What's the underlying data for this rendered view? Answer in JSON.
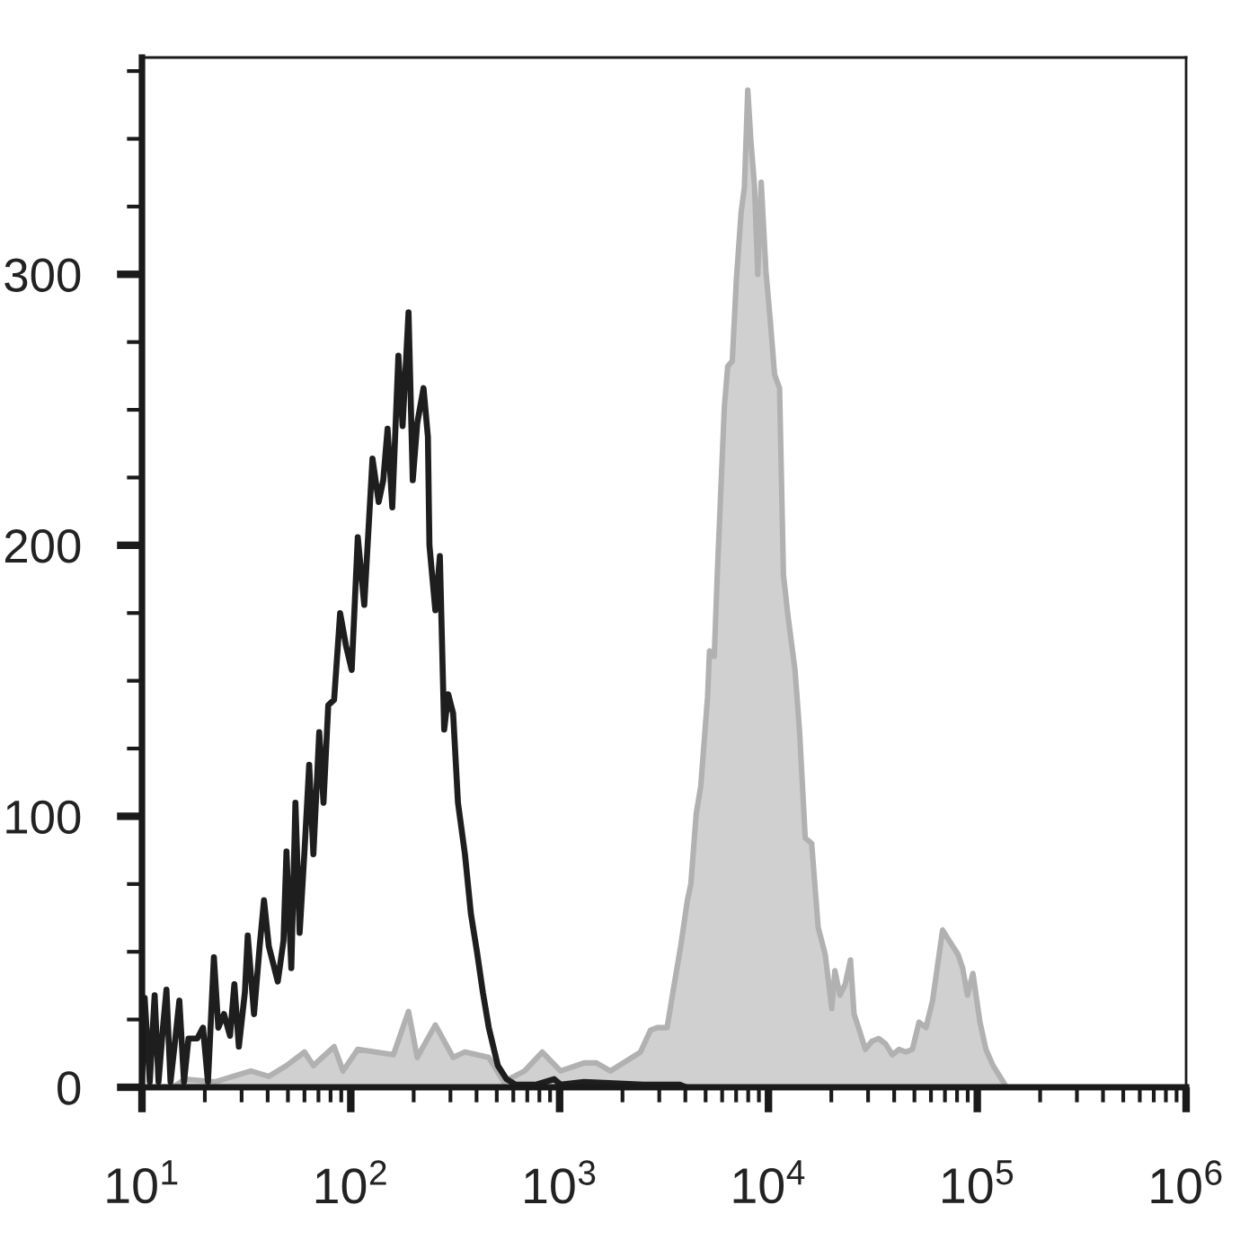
{
  "chart_data": {
    "type": "area",
    "log": "x",
    "xlim": [
      10,
      1000000
    ],
    "ylim": [
      0,
      380
    ],
    "xticks": [
      {
        "value": 10,
        "label": "10$^{1}$"
      },
      {
        "value": 20,
        "label": null
      },
      {
        "value": 30,
        "label": null
      },
      {
        "value": 40,
        "label": null
      },
      {
        "value": 50,
        "label": null
      },
      {
        "value": 60,
        "label": null
      },
      {
        "value": 70,
        "label": null
      },
      {
        "value": 80,
        "label": null
      },
      {
        "value": 90,
        "label": null
      },
      {
        "value": 100,
        "label": "10$^{2}$"
      },
      {
        "value": 200,
        "label": null
      },
      {
        "value": 300,
        "label": null
      },
      {
        "value": 400,
        "label": null
      },
      {
        "value": 500,
        "label": null
      },
      {
        "value": 600,
        "label": null
      },
      {
        "value": 700,
        "label": null
      },
      {
        "value": 800,
        "label": null
      },
      {
        "value": 900,
        "label": null
      },
      {
        "value": 1000,
        "label": "10$^{3}$"
      },
      {
        "value": 2000,
        "label": null
      },
      {
        "value": 3000,
        "label": null
      },
      {
        "value": 4000,
        "label": null
      },
      {
        "value": 5000,
        "label": null
      },
      {
        "value": 6000,
        "label": null
      },
      {
        "value": 7000,
        "label": null
      },
      {
        "value": 8000,
        "label": null
      },
      {
        "value": 9000,
        "label": null
      },
      {
        "value": 10000,
        "label": "10$^{4}$"
      },
      {
        "value": 20000,
        "label": null
      },
      {
        "value": 30000,
        "label": null
      },
      {
        "value": 40000,
        "label": null
      },
      {
        "value": 50000,
        "label": null
      },
      {
        "value": 60000,
        "label": null
      },
      {
        "value": 70000,
        "label": null
      },
      {
        "value": 80000,
        "label": null
      },
      {
        "value": 90000,
        "label": null
      },
      {
        "value": 100000,
        "label": "10$^{5}$"
      },
      {
        "value": 200000,
        "label": null
      },
      {
        "value": 300000,
        "label": null
      },
      {
        "value": 400000,
        "label": null
      },
      {
        "value": 500000,
        "label": null
      },
      {
        "value": 600000,
        "label": null
      },
      {
        "value": 700000,
        "label": null
      },
      {
        "value": 800000,
        "label": null
      },
      {
        "value": 900000,
        "label": null
      },
      {
        "value": 1000000,
        "label": "10$^{6}$"
      }
    ],
    "yticks": [
      0,
      {
        "value": 25,
        "label": null
      },
      {
        "value": 50,
        "label": null
      },
      {
        "value": 75,
        "label": null
      },
      100,
      {
        "value": 125,
        "label": null
      },
      {
        "value": 150,
        "label": null
      },
      {
        "value": 175,
        "label": null
      },
      200,
      {
        "value": 225,
        "label": null
      },
      {
        "value": 250,
        "label": null
      },
      {
        "value": 275,
        "label": null
      },
      300,
      {
        "value": 325,
        "label": null
      },
      {
        "value": 350,
        "label": null
      },
      {
        "value": 375,
        "label": null
      }
    ],
    "series": [
      {
        "color": "#d0d0d0",
        "x": [
          14,
          16.1,
          22.4,
          33.2,
          40.5,
          49.2,
          60,
          66.2,
          83.2,
          91.8,
          108,
          160,
          189,
          208,
          254,
          309,
          352,
          458,
          540,
          679,
          826,
          1010,
          1310,
          1500,
          1750,
          2020,
          2440,
          2720,
          2930,
          3270,
          3520,
          3800,
          4090,
          4250,
          4510,
          4740,
          5110,
          5220,
          5500,
          5700,
          5920,
          6150,
          6380,
          6710,
          7020,
          7400,
          7670,
          7960,
          8260,
          8570,
          8890,
          9230,
          9730,
          10200,
          10700,
          11300,
          11800,
          12400,
          13400,
          14100,
          15000,
          16100,
          17300,
          18700,
          20100,
          20800,
          22000,
          23300,
          24700,
          25700,
          27000,
          29100,
          31300,
          33700,
          36400,
          39200,
          42200,
          45400,
          48900,
          52600,
          56800,
          61100,
          68200,
          73500,
          80900,
          85100,
          89700,
          95300,
          103000,
          110000,
          119000,
          133000,
          138000
        ],
        "values": [
          0,
          3,
          2,
          6,
          4,
          8,
          13,
          8,
          15,
          6,
          14,
          12,
          28,
          11,
          23,
          11,
          13,
          11,
          2,
          6,
          13,
          6,
          9,
          9,
          6,
          9,
          13,
          21,
          22,
          22,
          37,
          52,
          69,
          75,
          101,
          111,
          144,
          161,
          159,
          191,
          221,
          251,
          266,
          268,
          298,
          323,
          332,
          368,
          348,
          333,
          300,
          334,
          301,
          283,
          263,
          258,
          189,
          174,
          154,
          131,
          92,
          90,
          59,
          49,
          29,
          43,
          34,
          38,
          47,
          27,
          22,
          14,
          17,
          18,
          16,
          12,
          14,
          13,
          14,
          24,
          22,
          32,
          58,
          54,
          49,
          44,
          34,
          42,
          24,
          14,
          8,
          2,
          0
        ]
      },
      {
        "type": "line",
        "color": "#1e1e1e",
        "x": [
          10,
          10.3,
          10.9,
          11.5,
          12.0,
          12.6,
          13.1,
          13.7,
          14.4,
          15.1,
          15.9,
          16.7,
          18.4,
          19.6,
          20.7,
          22.1,
          23.2,
          24.7,
          26.4,
          27.7,
          29.1,
          31.1,
          32.1,
          34.4,
          36.6,
          38.4,
          40.5,
          44.7,
          47.6,
          49.2,
          51.9,
          54.3,
          56.9,
          60.0,
          63.2,
          66.2,
          70.6,
          74.0,
          78.0,
          83.2,
          88.9,
          94.8,
          101,
          108,
          116,
          127,
          136,
          143,
          150,
          158,
          169,
          177,
          189,
          198,
          208,
          223,
          234,
          238,
          254,
          267,
          280,
          293,
          309,
          326,
          352,
          376,
          402,
          429,
          458,
          506,
          557,
          615,
          774,
          942,
          1010,
          1310,
          2520,
          3740,
          4050
        ],
        "values": [
          2,
          33,
          2,
          34,
          2,
          22,
          36,
          2,
          17,
          32,
          2,
          18,
          18,
          22,
          2,
          48,
          22,
          27,
          19,
          38,
          15,
          35,
          56,
          27,
          52,
          69,
          52,
          39,
          54,
          87,
          44,
          105,
          57,
          87,
          119,
          86,
          131,
          105,
          141,
          143,
          175,
          163,
          154,
          203,
          178,
          232,
          216,
          224,
          243,
          214,
          270,
          244,
          286,
          224,
          245,
          258,
          240,
          200,
          176,
          196,
          132,
          145,
          138,
          105,
          86,
          64,
          50,
          35,
          22,
          8,
          3,
          1,
          1,
          3,
          1,
          2,
          1,
          1,
          0
        ]
      }
    ]
  }
}
